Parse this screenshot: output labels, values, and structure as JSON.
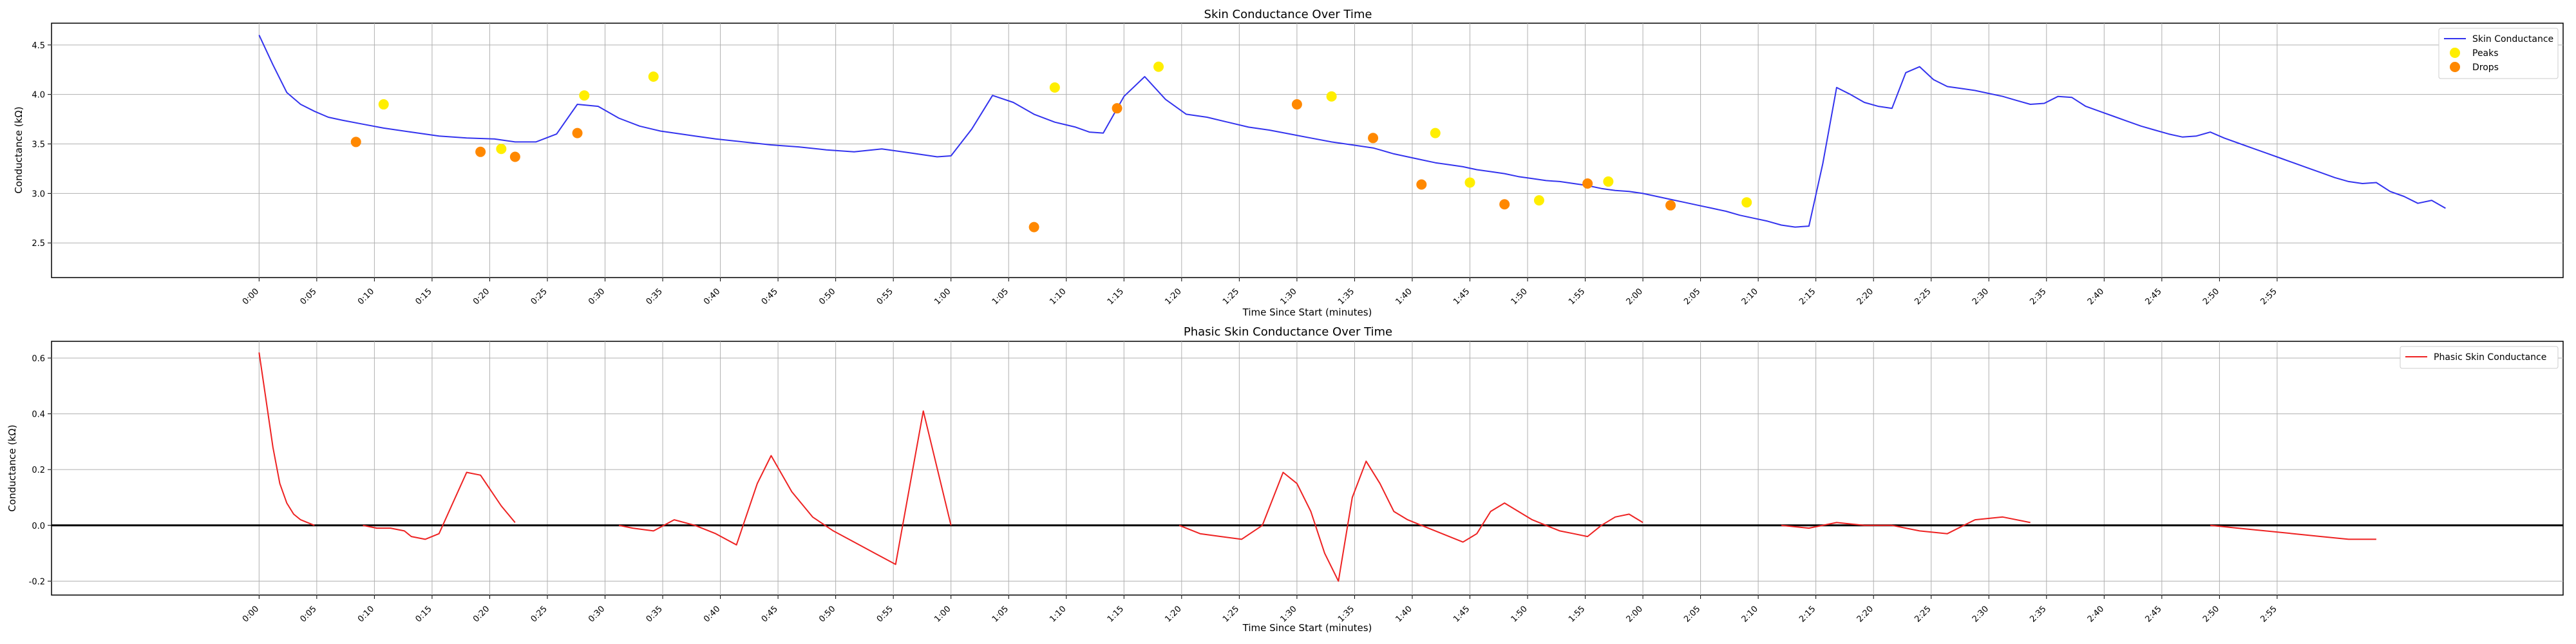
{
  "chart_data": [
    {
      "type": "line",
      "title": "Skin Conductance Over Time",
      "xlabel": "Time Since Start (minutes)",
      "ylabel": "Conductance (kΩ)",
      "xlim": [
        -0.3,
        3.33
      ],
      "ylim": [
        2.15,
        4.72
      ],
      "yticks": [
        2.5,
        3.0,
        3.5,
        4.0,
        4.5
      ],
      "grid": true,
      "legend_position": "top-right",
      "series": [
        {
          "name": "Skin Conductance",
          "color": "#3333ee",
          "x": [
            0.0,
            0.02,
            0.04,
            0.06,
            0.08,
            0.1,
            0.12,
            0.15,
            0.18,
            0.22,
            0.26,
            0.3,
            0.34,
            0.37,
            0.4,
            0.43,
            0.46,
            0.49,
            0.52,
            0.55,
            0.58,
            0.61,
            0.63,
            0.66,
            0.7,
            0.74,
            0.78,
            0.82,
            0.86,
            0.9,
            0.94,
            0.98,
            1.0,
            1.03,
            1.06,
            1.09,
            1.12,
            1.15,
            1.18,
            1.2,
            1.22,
            1.25,
            1.28,
            1.31,
            1.34,
            1.37,
            1.4,
            1.43,
            1.46,
            1.49,
            1.52,
            1.55,
            1.58,
            1.61,
            1.62,
            1.64,
            1.66,
            1.68,
            1.7,
            1.72,
            1.74,
            1.76,
            1.78,
            1.8,
            1.82,
            1.84,
            1.86,
            1.88,
            1.9,
            1.92,
            1.94,
            1.96,
            1.98,
            2.0,
            2.02,
            2.04,
            2.06,
            2.08,
            2.1,
            2.12,
            2.14,
            2.16,
            2.18,
            2.2,
            2.22,
            2.24,
            2.26,
            2.28,
            2.3,
            2.32,
            2.34,
            2.36,
            2.38,
            2.4,
            2.42,
            2.44,
            2.46,
            2.48,
            2.5,
            2.52,
            2.54,
            2.56,
            2.58,
            2.6,
            2.62,
            2.64,
            2.66,
            2.68,
            2.7,
            2.72,
            2.74,
            2.76,
            2.78,
            2.8,
            2.82,
            2.84,
            2.86,
            2.88,
            2.9,
            2.92,
            2.94,
            2.96,
            2.98,
            3.0,
            3.02,
            3.04,
            3.06,
            3.08,
            3.1,
            3.12,
            3.14,
            3.16
          ],
          "values": [
            4.6,
            4.3,
            4.02,
            3.9,
            3.83,
            3.77,
            3.74,
            3.7,
            3.66,
            3.62,
            3.58,
            3.56,
            3.55,
            3.52,
            3.52,
            3.6,
            3.9,
            3.88,
            3.76,
            3.68,
            3.63,
            3.6,
            3.58,
            3.55,
            3.52,
            3.49,
            3.47,
            3.44,
            3.42,
            3.45,
            3.41,
            3.37,
            3.38,
            3.65,
            3.99,
            3.92,
            3.8,
            3.72,
            3.67,
            3.62,
            3.61,
            3.98,
            4.18,
            3.95,
            3.8,
            3.77,
            3.72,
            3.67,
            3.64,
            3.6,
            3.56,
            3.52,
            3.49,
            3.46,
            3.44,
            3.4,
            3.37,
            3.34,
            3.31,
            3.29,
            3.27,
            3.24,
            3.22,
            3.2,
            3.17,
            3.15,
            3.13,
            3.12,
            3.1,
            3.08,
            3.05,
            3.03,
            3.02,
            3.0,
            2.97,
            2.94,
            2.91,
            2.88,
            2.85,
            2.82,
            2.78,
            2.75,
            2.72,
            2.68,
            2.66,
            2.67,
            3.3,
            4.07,
            4.0,
            3.92,
            3.88,
            3.86,
            4.22,
            4.28,
            4.15,
            4.08,
            4.06,
            4.04,
            4.01,
            3.98,
            3.94,
            3.9,
            3.91,
            3.98,
            3.97,
            3.88,
            3.83,
            3.78,
            3.73,
            3.68,
            3.64,
            3.6,
            3.57,
            3.58,
            3.62,
            3.56,
            3.51,
            3.46,
            3.41,
            3.36,
            3.31,
            3.26,
            3.21,
            3.16,
            3.12,
            3.1,
            3.11,
            3.02,
            2.97,
            2.9,
            2.93,
            2.85
          ]
        },
        {
          "name": "Peaks",
          "type": "scatter",
          "color": "#ffee00",
          "x": [
            0.18,
            0.35,
            0.47,
            0.57,
            1.15,
            1.3,
            1.55,
            1.7,
            1.75,
            1.85,
            1.95,
            2.15
          ],
          "values": [
            3.9,
            3.45,
            3.99,
            4.18,
            4.07,
            4.28,
            3.98,
            3.61,
            3.11,
            2.93,
            3.12,
            2.91
          ]
        },
        {
          "name": "Drops",
          "type": "scatter",
          "color": "#ff8800",
          "x": [
            0.14,
            0.32,
            0.37,
            0.46,
            1.12,
            1.24,
            1.5,
            1.61,
            1.68,
            1.8,
            1.92,
            2.04
          ],
          "values": [
            3.52,
            3.42,
            3.37,
            3.61,
            2.66,
            3.86,
            3.9,
            3.56,
            3.09,
            2.89,
            3.1,
            2.88
          ]
        }
      ]
    },
    {
      "type": "line",
      "title": "Phasic Skin Conductance Over Time",
      "xlabel": "Time Since Start (minutes)",
      "ylabel": "Conductance (kΩ)",
      "xlim": [
        -0.3,
        3.33
      ],
      "ylim": [
        -0.25,
        0.66
      ],
      "yticks": [
        -0.2,
        0.0,
        0.2,
        0.4,
        0.6
      ],
      "grid": true,
      "zero_line": true,
      "legend_position": "top-right",
      "series": [
        {
          "name": "Phasic Skin Conductance",
          "color": "#ee2222",
          "segments": [
            {
              "x": [
                0.0,
                0.01,
                0.02,
                0.03,
                0.04,
                0.05,
                0.06,
                0.07,
                0.08
              ],
              "values": [
                0.62,
                0.45,
                0.28,
                0.15,
                0.08,
                0.04,
                0.02,
                0.01,
                0.0
              ]
            },
            {
              "x": [
                0.15,
                0.17,
                0.19,
                0.21,
                0.22,
                0.24,
                0.26,
                0.28,
                0.3,
                0.32,
                0.35,
                0.37
              ],
              "values": [
                0.0,
                -0.01,
                -0.01,
                -0.02,
                -0.04,
                -0.05,
                -0.03,
                0.08,
                0.19,
                0.18,
                0.07,
                0.01
              ]
            },
            {
              "x": [
                0.52,
                0.54,
                0.57,
                0.6,
                0.63,
                0.66,
                0.69,
                0.72,
                0.74,
                0.77,
                0.8,
                0.83,
                0.86,
                0.89,
                0.92,
                0.96,
                1.0
              ],
              "values": [
                0.0,
                -0.01,
                -0.02,
                0.02,
                0.0,
                -0.03,
                -0.07,
                0.15,
                0.25,
                0.12,
                0.03,
                -0.02,
                -0.06,
                -0.1,
                -0.14,
                0.41,
                0.0
              ]
            },
            {
              "x": [
                1.33,
                1.36,
                1.39,
                1.42,
                1.45,
                1.48,
                1.5,
                1.52,
                1.54,
                1.56,
                1.58,
                1.6,
                1.62,
                1.64,
                1.66,
                1.68,
                1.7,
                1.72,
                1.74,
                1.76,
                1.78,
                1.8,
                1.82,
                1.84,
                1.86,
                1.88,
                1.9,
                1.92,
                1.94,
                1.96,
                1.98,
                2.0
              ],
              "values": [
                0.0,
                -0.03,
                -0.04,
                -0.05,
                0.0,
                0.19,
                0.15,
                0.05,
                -0.1,
                -0.2,
                0.1,
                0.23,
                0.15,
                0.05,
                0.02,
                0.0,
                -0.02,
                -0.04,
                -0.06,
                -0.03,
                0.05,
                0.08,
                0.05,
                0.02,
                0.0,
                -0.02,
                -0.03,
                -0.04,
                0.0,
                0.03,
                0.04,
                0.01
              ]
            },
            {
              "x": [
                2.2,
                2.24,
                2.28,
                2.32,
                2.36,
                2.4,
                2.44,
                2.48,
                2.52,
                2.56
              ],
              "values": [
                0.0,
                -0.01,
                0.01,
                0.0,
                0.0,
                -0.02,
                -0.03,
                0.02,
                0.03,
                0.01
              ]
            },
            {
              "x": [
                2.82,
                2.86,
                2.9,
                2.94,
                2.98,
                3.02,
                3.06
              ],
              "values": [
                0.0,
                -0.01,
                -0.02,
                -0.03,
                -0.04,
                -0.05,
                -0.05
              ]
            }
          ]
        }
      ]
    }
  ],
  "x_tick_labels": [
    "0:00",
    "0:05",
    "0:10",
    "0:15",
    "0:20",
    "0:25",
    "0:30",
    "0:35",
    "0:40",
    "0:45",
    "0:50",
    "0:55",
    "1:00",
    "1:05",
    "1:10",
    "1:15",
    "1:20",
    "1:25",
    "1:30",
    "1:35",
    "1:40",
    "1:45",
    "1:50",
    "1:55",
    "2:00",
    "2:05",
    "2:10",
    "2:15",
    "2:20",
    "2:25",
    "2:30",
    "2:35",
    "2:40",
    "2:45",
    "2:50",
    "2:55"
  ]
}
